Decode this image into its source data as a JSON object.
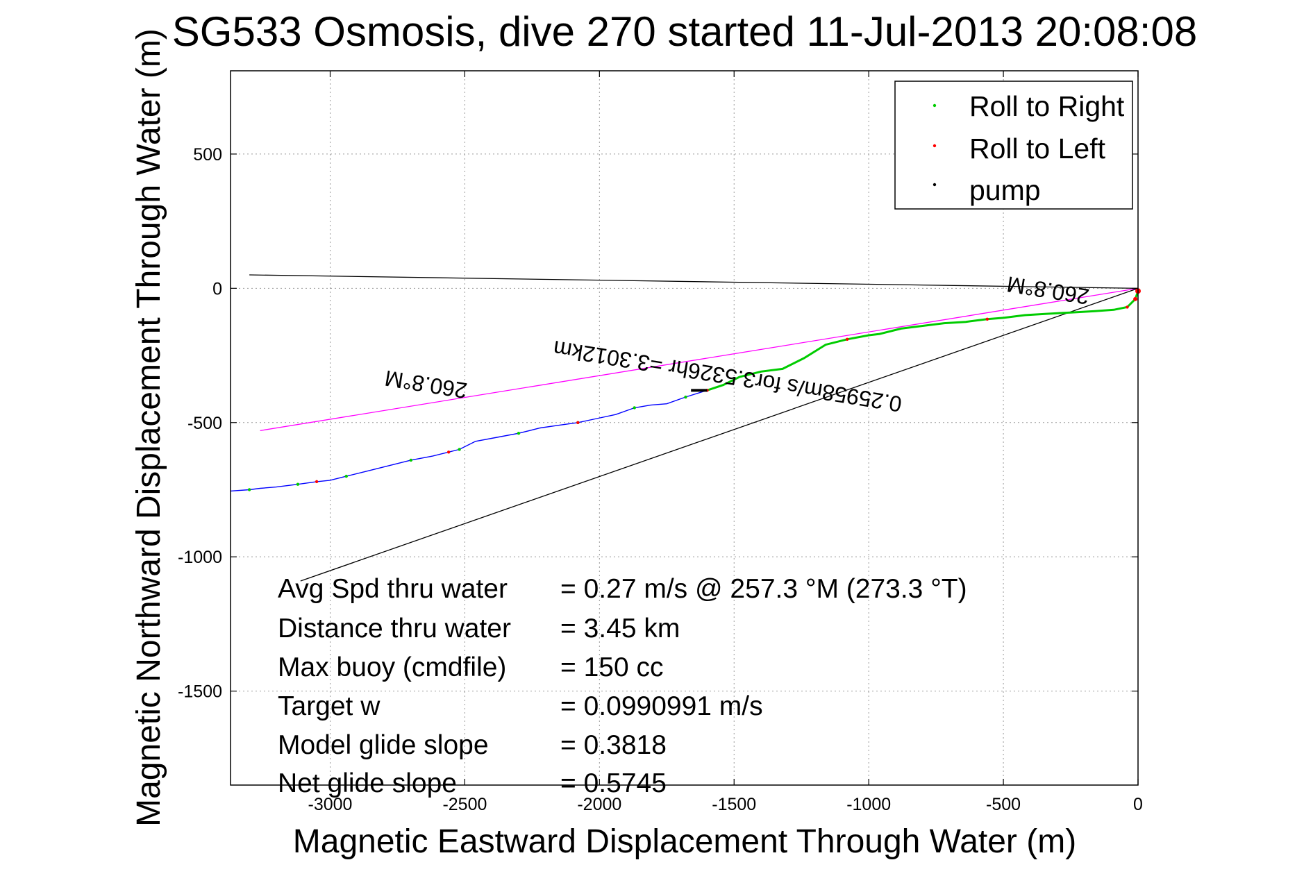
{
  "chart_data": {
    "type": "line",
    "title": "SG533 Osmosis, dive 270 started 11-Jul-2013 20:08:08",
    "xlabel": "Magnetic Eastward Displacement Through Water (m)",
    "ylabel": "Magnetic Northward Displacement Through Water (m)",
    "xlim": [
      -3370,
      0
    ],
    "ylim": [
      -1850,
      810
    ],
    "xticks": [
      -3000,
      -2500,
      -2000,
      -1500,
      -1000,
      -500,
      0
    ],
    "yticks": [
      500,
      0,
      -500,
      -1000,
      -1500
    ],
    "xtick_labels": [
      "-3000",
      "-2500",
      "-2000",
      "-1500",
      "-1000",
      "-500",
      "0"
    ],
    "ytick_labels": [
      "500",
      "0",
      "-500",
      "-1000",
      "-1500"
    ],
    "grid": true,
    "legend_position": "top-right",
    "legend": [
      {
        "label": "Roll to Right",
        "color": "#00cc00"
      },
      {
        "label": "Roll to Left",
        "color": "#ff0000"
      },
      {
        "label": "pump",
        "color": "#000000"
      }
    ],
    "series": [
      {
        "name": "track",
        "color": "#0000ff",
        "x": [
          0,
          -10,
          -40,
          -90,
          -160,
          -250,
          -340,
          -420,
          -500,
          -560,
          -640,
          -720,
          -800,
          -880,
          -960,
          -1000,
          -1080,
          -1160,
          -1240,
          -1320,
          -1400,
          -1480,
          -1540,
          -1600,
          -1680,
          -1750,
          -1810,
          -1870,
          -1940,
          -2010,
          -2080,
          -2150,
          -2220,
          -2300,
          -2380,
          -2460,
          -2520,
          -2560,
          -2620,
          -2700,
          -2780,
          -2860,
          -2940,
          -3000,
          -3050,
          -3120,
          -3200,
          -3260,
          -3300,
          -3370
        ],
        "y": [
          -10,
          -40,
          -70,
          -80,
          -85,
          -90,
          -95,
          -100,
          -110,
          -115,
          -125,
          -130,
          -140,
          -150,
          -170,
          -175,
          -190,
          -210,
          -260,
          -300,
          -310,
          -330,
          -360,
          -380,
          -405,
          -430,
          -435,
          -445,
          -470,
          -485,
          -500,
          -510,
          -520,
          -540,
          -555,
          -570,
          -600,
          -610,
          -625,
          -640,
          -660,
          -680,
          -700,
          -715,
          -720,
          -730,
          -740,
          -745,
          -750,
          -755
        ]
      }
    ],
    "markers": {
      "roll_right_color": "#00cc00",
      "roll_left_color": "#ff0000",
      "pump_color": "#000000",
      "pump_segment_x": [
        -1660,
        -1600
      ]
    },
    "reference_lines": [
      {
        "color": "#ff00ff",
        "x": [
          0,
          -3260
        ],
        "y": [
          0,
          -530
        ]
      },
      {
        "color": "#000000",
        "x": [
          0,
          -3300
        ],
        "y": [
          0,
          50
        ]
      },
      {
        "color": "#000000",
        "x": [
          0,
          -3110
        ],
        "y": [
          0,
          -1090
        ]
      }
    ],
    "annotations": [
      {
        "text": "260.8°M",
        "x": -330,
        "y": 20,
        "rotation": 189.2
      },
      {
        "text": "0.25958m/s for3.5326hr =3.3012km",
        "x": -1520,
        "y": -300,
        "rotation": 189.2
      },
      {
        "text": "260.8°M",
        "x": -2640,
        "y": -330,
        "rotation": 189.2
      }
    ],
    "stats": [
      {
        "label": "Avg Spd thru water",
        "value": "=  0.27 m/s @ 257.3 °M (273.3 °T)"
      },
      {
        "label": "Distance thru water",
        "value": "=  3.45 km"
      },
      {
        "label": "Max buoy (cmdfile)",
        "value": "= 150 cc"
      },
      {
        "label": "Target w",
        "value": "= 0.0990991 m/s"
      },
      {
        "label": "Model glide slope",
        "value": "= 0.3818"
      },
      {
        "label": "Net glide slope",
        "value": "= 0.5745"
      }
    ]
  }
}
